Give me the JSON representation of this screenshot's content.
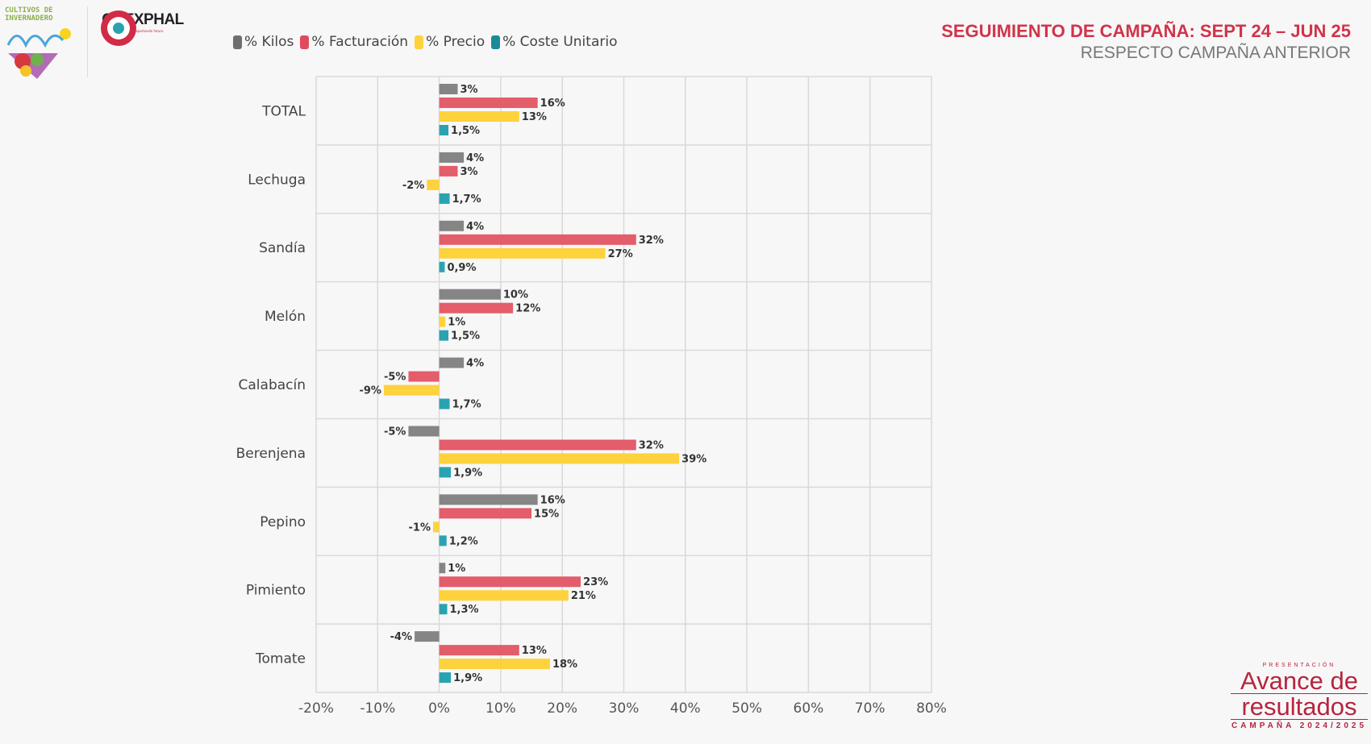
{
  "logos": {
    "left_text": "CULTIVOS DE INVERNADERO",
    "coexphal_name": "COEXPHAL",
    "coexphal_tagline": "unidos exportando futuro",
    "brand_top": "PRESENTACIÓN",
    "brand_line1": "Avance de",
    "brand_line2": "resultados",
    "brand_bottom": "CAMPAÑA 2024/2025"
  },
  "header": {
    "title": "SEGUIMIENTO DE CAMPAÑA: SEPT 24 – JUN 25",
    "subtitle": "RESPECTO CAMPAÑA ANTERIOR"
  },
  "chart_data": {
    "type": "bar",
    "orientation": "horizontal",
    "categories": [
      "TOTAL",
      "Lechuga",
      "Sandía",
      "Melón",
      "Calabacín",
      "Berenjena",
      "Pepino",
      "Pimiento",
      "Tomate"
    ],
    "series": [
      {
        "name": "% Kilos",
        "color": "#858585",
        "values": [
          3,
          4,
          4,
          10,
          4,
          -5,
          16,
          1,
          -4
        ],
        "labels": [
          "3%",
          "4%",
          "4%",
          "10%",
          "4%",
          "-5%",
          "16%",
          "1%",
          "-4%"
        ]
      },
      {
        "name": "% Facturación",
        "color": "#e35d6a",
        "values": [
          16,
          3,
          32,
          12,
          -5,
          32,
          15,
          23,
          13
        ],
        "labels": [
          "16%",
          "3%",
          "32%",
          "12%",
          "-5%",
          "32%",
          "15%",
          "23%",
          "13%"
        ]
      },
      {
        "name": "% Precio",
        "color": "#fdd23c",
        "values": [
          13,
          -2,
          27,
          1,
          -9,
          39,
          -1,
          21,
          18
        ],
        "labels": [
          "13%",
          "-2%",
          "27%",
          "1%",
          "-9%",
          "39%",
          "-1%",
          "21%",
          "18%"
        ]
      },
      {
        "name": "% Coste Unitario",
        "color": "#2aa3b1",
        "values": [
          1.5,
          1.7,
          0.9,
          1.5,
          1.7,
          1.9,
          1.2,
          1.3,
          1.9
        ],
        "labels": [
          "1,5%",
          "1,7%",
          "0,9%",
          "1,5%",
          "1,7%",
          "1,9%",
          "1,2%",
          "1,3%",
          "1,9%"
        ]
      }
    ],
    "xlim": [
      -20,
      80
    ],
    "xticks": [
      "-20%",
      "-10%",
      "0%",
      "10%",
      "20%",
      "30%",
      "40%",
      "50%",
      "60%",
      "70%",
      "80%"
    ],
    "grid": true,
    "legend": "top"
  }
}
